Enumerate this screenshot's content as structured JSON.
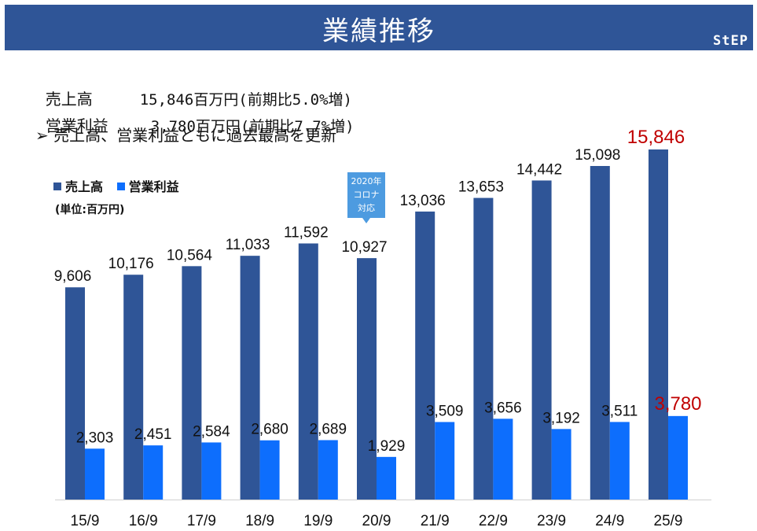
{
  "header": {
    "title": "業績推移",
    "logo": "StEP"
  },
  "summary": {
    "sales": {
      "label": "売上高",
      "value": "15,846百万円(前期比5.0%増)"
    },
    "op": {
      "label": "営業利益",
      "value": "3,780百万円(前期比7.7%増)"
    },
    "note": "➢ 売上高、営業利益ともに過去最高を更新"
  },
  "colors": {
    "sales": "#2f5597",
    "op": "#0d6efd",
    "highlight": "#c00000"
  },
  "chart_data": {
    "type": "bar",
    "categories": [
      "15/9",
      "16/9",
      "17/9",
      "18/9",
      "19/9",
      "20/9",
      "21/9",
      "22/9",
      "23/9",
      "24/9",
      "25/9"
    ],
    "series": [
      {
        "name": "売上高",
        "values": [
          9606,
          10176,
          10564,
          11033,
          11592,
          10927,
          13036,
          13653,
          14442,
          15098,
          15846
        ]
      },
      {
        "name": "営業利益",
        "values": [
          2303,
          2451,
          2584,
          2680,
          2689,
          1929,
          3509,
          3656,
          3192,
          3511,
          3780
        ]
      }
    ],
    "unit_label": "(単位:百万円)",
    "annotation": {
      "lines": [
        "2020年",
        "コロナ",
        "対応"
      ],
      "category": "20/9"
    },
    "highlight_category": "25/9",
    "legend": "top-left",
    "grid": false
  }
}
